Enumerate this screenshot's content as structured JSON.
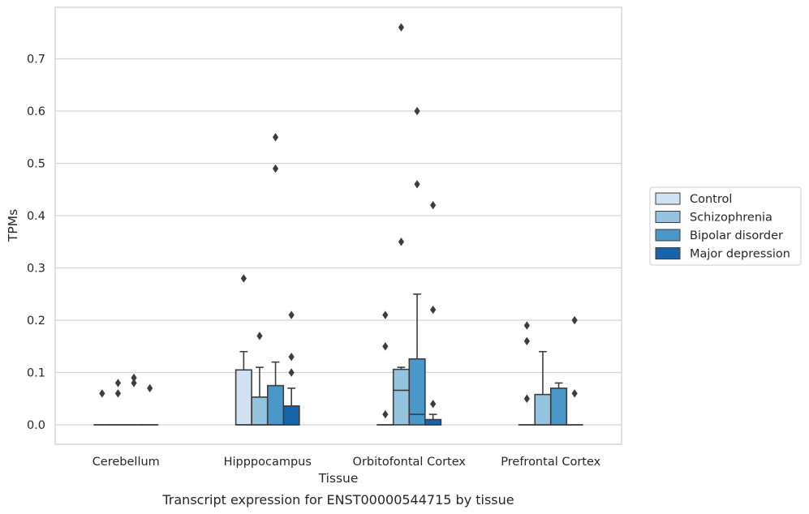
{
  "chart_data": {
    "type": "box",
    "caption": "Transcript expression for ENST00000544715 by tissue",
    "xlabel": "Tissue",
    "ylabel": "TPMs",
    "ylim": [
      -0.037,
      0.8
    ],
    "yticks": [
      "0.0",
      "0.1",
      "0.2",
      "0.3",
      "0.4",
      "0.5",
      "0.6",
      "0.7"
    ],
    "grid": "horizontal",
    "legend_position": "right",
    "categories": [
      "Cerebellum",
      "Hipppocampus",
      "Orbitofontal Cortex",
      "Prefrontal Cortex"
    ],
    "series": [
      {
        "name": "Control",
        "color": "#d0e1f2",
        "boxes": [
          {
            "q1": 0,
            "median": 0,
            "q3": 0,
            "whisker_low": 0,
            "whisker_high": 0,
            "outliers": [
              0.06
            ]
          },
          {
            "q1": 0,
            "median": 0,
            "q3": 0.105,
            "whisker_low": 0,
            "whisker_high": 0.14,
            "outliers": [
              0.28
            ]
          },
          {
            "q1": 0,
            "median": 0,
            "q3": 0,
            "whisker_low": 0,
            "whisker_high": 0,
            "outliers": [
              0.21,
              0.15,
              0.02
            ]
          },
          {
            "q1": 0,
            "median": 0,
            "q3": 0,
            "whisker_low": 0,
            "whisker_high": 0,
            "outliers": [
              0.19,
              0.16,
              0.05
            ]
          }
        ]
      },
      {
        "name": "Schizophrenia",
        "color": "#94c4df",
        "boxes": [
          {
            "q1": 0,
            "median": 0,
            "q3": 0,
            "whisker_low": 0,
            "whisker_high": 0,
            "outliers": [
              0.08,
              0.06
            ]
          },
          {
            "q1": 0,
            "median": 0,
            "q3": 0.053,
            "whisker_low": 0,
            "whisker_high": 0.11,
            "outliers": [
              0.17
            ]
          },
          {
            "q1": 0,
            "median": 0.066,
            "q3": 0.106,
            "whisker_low": 0,
            "whisker_high": 0.11,
            "outliers": [
              0.76,
              0.35
            ]
          },
          {
            "q1": 0,
            "median": 0,
            "q3": 0.058,
            "whisker_low": 0,
            "whisker_high": 0.14,
            "outliers": []
          }
        ]
      },
      {
        "name": "Bipolar disorder",
        "color": "#4a98c9",
        "boxes": [
          {
            "q1": 0,
            "median": 0,
            "q3": 0,
            "whisker_low": 0,
            "whisker_high": 0,
            "outliers": [
              0.09,
              0.08
            ]
          },
          {
            "q1": 0,
            "median": 0,
            "q3": 0.075,
            "whisker_low": 0,
            "whisker_high": 0.12,
            "outliers": [
              0.55,
              0.49
            ]
          },
          {
            "q1": 0,
            "median": 0.02,
            "q3": 0.126,
            "whisker_low": 0,
            "whisker_high": 0.25,
            "outliers": [
              0.6,
              0.46
            ]
          },
          {
            "q1": 0,
            "median": 0,
            "q3": 0.07,
            "whisker_low": 0,
            "whisker_high": 0.08,
            "outliers": []
          }
        ]
      },
      {
        "name": "Major depression",
        "color": "#1764ab",
        "boxes": [
          {
            "q1": 0,
            "median": 0,
            "q3": 0,
            "whisker_low": 0,
            "whisker_high": 0,
            "outliers": [
              0.07
            ]
          },
          {
            "q1": 0,
            "median": 0,
            "q3": 0.036,
            "whisker_low": 0,
            "whisker_high": 0.07,
            "outliers": [
              0.21,
              0.13,
              0.1
            ]
          },
          {
            "q1": 0,
            "median": 0,
            "q3": 0.01,
            "whisker_low": 0,
            "whisker_high": 0.02,
            "outliers": [
              0.42,
              0.22,
              0.04
            ]
          },
          {
            "q1": 0,
            "median": 0,
            "q3": 0,
            "whisker_low": 0,
            "whisker_high": 0,
            "outliers": [
              0.2,
              0.06
            ]
          }
        ]
      }
    ]
  }
}
